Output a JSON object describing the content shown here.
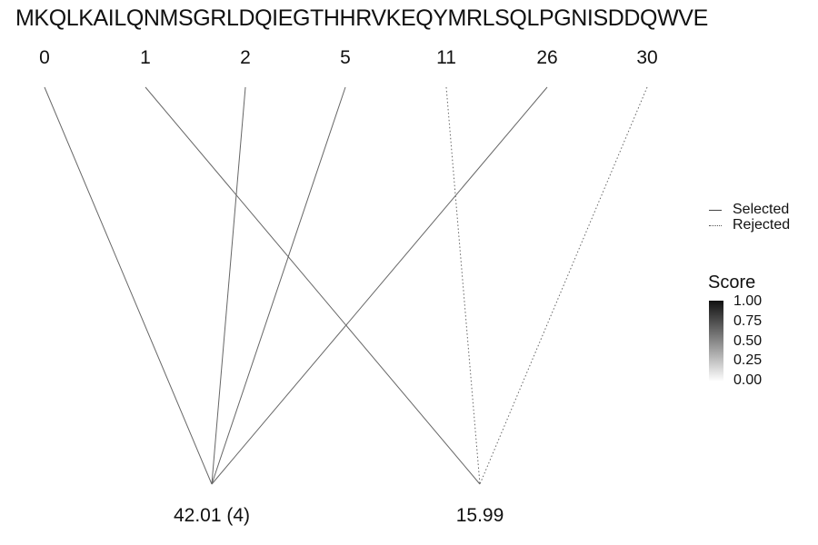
{
  "sequence": "MKQLKAILQNMSGRLDQIEGTHHRVKEQYMRLSQLPGNISDDQWVE",
  "positions": [
    {
      "label": "0",
      "type": "selected"
    },
    {
      "label": "1",
      "type": "selected"
    },
    {
      "label": "2",
      "type": "selected"
    },
    {
      "label": "5",
      "type": "selected"
    },
    {
      "label": "11",
      "type": "rejected"
    },
    {
      "label": "26",
      "type": "selected"
    },
    {
      "label": "30",
      "type": "rejected"
    }
  ],
  "results": [
    {
      "label": "42.01 (4)"
    },
    {
      "label": "15.99"
    }
  ],
  "links": [
    {
      "from": 0,
      "to": 0,
      "type": "selected"
    },
    {
      "from": 1,
      "to": 1,
      "type": "selected"
    },
    {
      "from": 2,
      "to": 0,
      "type": "selected"
    },
    {
      "from": 3,
      "to": 0,
      "type": "selected"
    },
    {
      "from": 4,
      "to": 1,
      "type": "rejected"
    },
    {
      "from": 5,
      "to": 0,
      "type": "selected"
    },
    {
      "from": 6,
      "to": 1,
      "type": "rejected"
    }
  ],
  "legend": {
    "selected_label": "Selected",
    "rejected_label": "Rejected",
    "score_title": "Score",
    "score_ticks": [
      "1.00",
      "0.75",
      "0.50",
      "0.25",
      "0.00"
    ]
  },
  "colors": {
    "line": "#666666",
    "text": "#111111"
  }
}
